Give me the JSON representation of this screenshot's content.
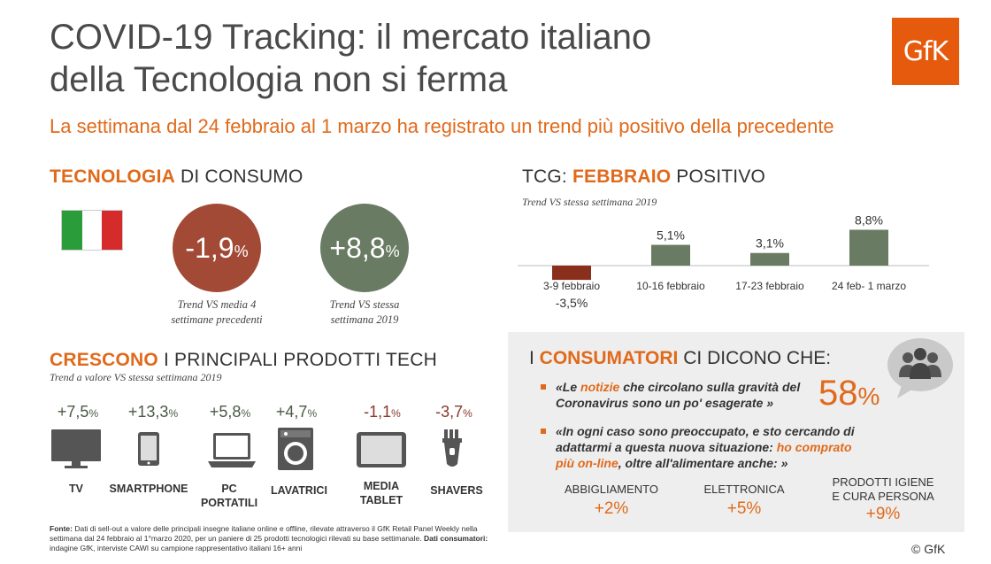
{
  "header": {
    "title_bold": "COVID-19 Tracking",
    "title_rest": ": il mercato italiano",
    "title_line2": "della Tecnologia non si ferma",
    "subtitle": "La settimana dal 24 febbraio al 1 marzo ha registrato un trend più positivo della precedente",
    "logo": "GfK"
  },
  "consumo": {
    "head_hl": "TECNOLOGIA",
    "head_rest": " DI CONSUMO",
    "circle1_value": "-1,9",
    "circle1_pct": "%",
    "circle1_caption_l1": "Trend VS media 4",
    "circle1_caption_l2": "settimane precedenti",
    "circle2_value": "+8,8",
    "circle2_pct": "%",
    "circle2_caption_l1": "Trend VS stessa",
    "circle2_caption_l2": "settimana 2019",
    "colors": {
      "negative": "#a24a35",
      "positive": "#6a7b63",
      "accent": "#e06a1b"
    }
  },
  "prodotti": {
    "head_hl": "CRESCONO",
    "head_rest": " I PRINCIPALI PRODOTTI TECH",
    "note": "Trend a valore VS stessa settimana 2019",
    "items": [
      {
        "value": "+7,5",
        "pct": "%",
        "label_l1": "TV",
        "label_l2": "",
        "icon": "tv-icon"
      },
      {
        "value": "+13,3",
        "pct": "%",
        "label_l1": "SMARTPHONE",
        "label_l2": "",
        "icon": "smartphone-icon"
      },
      {
        "value": "+5,8",
        "pct": "%",
        "label_l1": "PC",
        "label_l2": "PORTATILI",
        "icon": "laptop-icon"
      },
      {
        "value": "+4,7",
        "pct": "%",
        "label_l1": "LAVATRICI",
        "label_l2": "",
        "icon": "washing-machine-icon"
      },
      {
        "value": "-1,1",
        "pct": "%",
        "label_l1": "MEDIA",
        "label_l2": "TABLET",
        "icon": "tablet-icon"
      },
      {
        "value": "-3,7",
        "pct": "%",
        "label_l1": "SHAVERS",
        "label_l2": "",
        "icon": "shaver-icon"
      }
    ]
  },
  "chart_data": {
    "type": "bar",
    "title": "TCG: FEBBRAIO POSITIVO",
    "title_prefix": "TCG: ",
    "title_hl": "FEBBRAIO",
    "title_suffix": " POSITIVO",
    "note": "Trend VS stessa settimana 2019",
    "categories": [
      "3-9 febbraio",
      "10-16 febbraio",
      "17-23 febbraio",
      "24 feb- 1 marzo"
    ],
    "values": [
      -3.5,
      5.1,
      3.1,
      8.8
    ],
    "value_labels": [
      "-3,5%",
      "5,1%",
      "3,1%",
      "8,8%"
    ],
    "colors": {
      "positive": "#6a7b63",
      "negative": "#8a2f1c"
    },
    "ylim": [
      -3.5,
      8.8
    ],
    "grid": false,
    "legend": "none"
  },
  "consumatori": {
    "head_pre": "I ",
    "head_hl": "CONSUMATORI",
    "head_rest": " CI DICONO CHE:",
    "bullet1_a": "«Le ",
    "bullet1_hl": "notizie",
    "bullet1_b": " che circolano sulla gravità del",
    "bullet1_l2": "Coronavirus sono un po' esagerate »",
    "bullet1_value": "58",
    "bullet1_pct": "%",
    "bullet2_l1": "«In ogni caso sono preoccupato, e sto cercando di",
    "bullet2_l2a": "adattarmi a questa nuova situazione: ",
    "bullet2_l2hl": "ho comprato",
    "bullet2_l3hl": "più on-line",
    "bullet2_l3b": ", oltre all'alimentare anche: »",
    "categories": [
      {
        "label_l1": "ABBIGLIAMENTO",
        "label_l2": "",
        "value": "+2%"
      },
      {
        "label_l1": "ELETTRONICA",
        "label_l2": "",
        "value": "+5%"
      },
      {
        "label_l1": "PRODOTTI IGIENE",
        "label_l2": "E CURA PERSONA",
        "value": "+9%"
      }
    ],
    "icon": "people-speech-icon"
  },
  "footnote": {
    "fonte_label": "Fonte:",
    "fonte_text": " Dati di sell-out a valore delle principali insegne italiane online e offline, rilevate attraverso il GfK Retail Panel Weekly nella settimana dal 24 febbraio al 1°marzo 2020, per un paniere di 25 prodotti tecnologici rilevati su base settimanale. ",
    "cons_label": "Dati consumatori:",
    "cons_text": " indagine GfK, interviste CAWI su campione rappresentativo italiani 16+ anni"
  },
  "copyright": "© GfK"
}
